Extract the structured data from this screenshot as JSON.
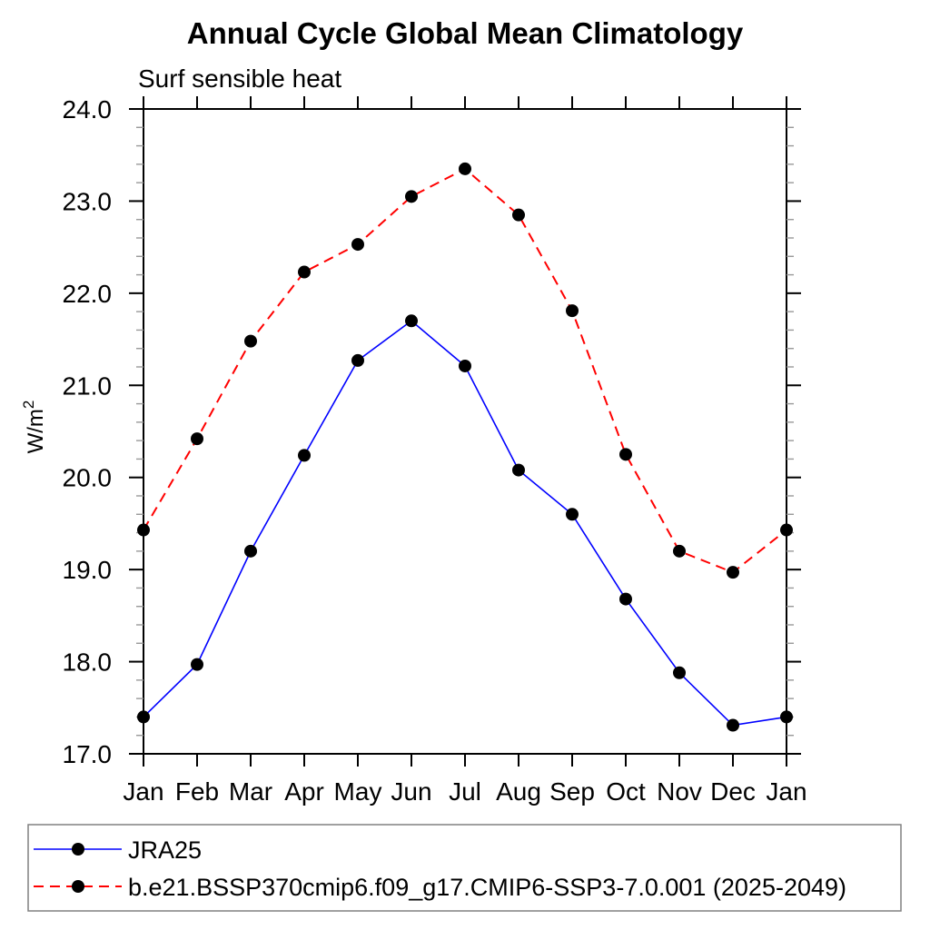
{
  "title": "Annual Cycle Global Mean Climatology",
  "subtitle": "Surf sensible heat",
  "ylabel": {
    "base": "W/m",
    "sup": "2"
  },
  "legend": {
    "items": [
      {
        "label": "JRA25"
      },
      {
        "label": "b.e21.BSSP370cmip6.f09_g17.CMIP6-SSP3-7.0.001 (2025-2049)"
      }
    ]
  },
  "colors": {
    "jra25_line": "#0000ff",
    "model_line": "#ff0000",
    "marker": "#000000",
    "axis": "#000000",
    "minor_tick": "#999999",
    "legend_border": "#808080",
    "background": "#ffffff"
  },
  "chart_data": {
    "type": "line",
    "title": "Annual Cycle Global Mean Climatology",
    "subtitle": "Surf sensible heat",
    "xlabel": "",
    "ylabel": "W/m²",
    "categories": [
      "Jan",
      "Feb",
      "Mar",
      "Apr",
      "May",
      "Jun",
      "Jul",
      "Aug",
      "Sep",
      "Oct",
      "Nov",
      "Dec",
      "Jan"
    ],
    "series": [
      {
        "name": "JRA25",
        "color": "#0000ff",
        "line_style": "solid",
        "marker": "filled-circle",
        "marker_color": "#000000",
        "values": [
          17.4,
          17.97,
          19.2,
          20.24,
          21.27,
          21.7,
          21.21,
          20.08,
          19.6,
          18.68,
          17.88,
          17.31,
          17.4
        ]
      },
      {
        "name": "b.e21.BSSP370cmip6.f09_g17.CMIP6-SSP3-7.0.001 (2025-2049)",
        "color": "#ff0000",
        "line_style": "dashed",
        "marker": "filled-circle",
        "marker_color": "#000000",
        "values": [
          19.43,
          20.42,
          21.48,
          22.23,
          22.53,
          23.05,
          23.35,
          22.85,
          21.81,
          20.25,
          19.2,
          18.97,
          19.43
        ]
      }
    ],
    "ylim": [
      17.0,
      24.0
    ],
    "ytick_major": 1.0,
    "ytick_minor": 0.2,
    "ytick_label_format": "one-decimal",
    "grid": false,
    "legend_position": "bottom-left-boxed"
  }
}
